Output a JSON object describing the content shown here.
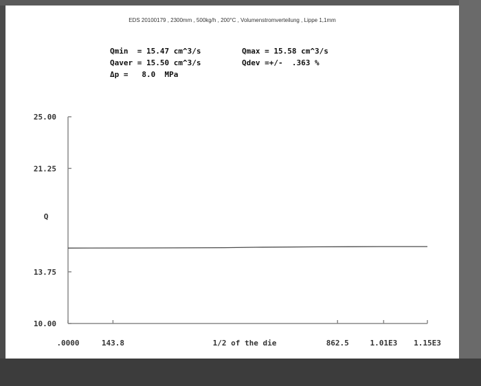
{
  "header": "EDS 20100179 , 2300mm , 500kg/h , 200°C , Volumenstromverteilung , Lippe 1,1mm",
  "stats": {
    "qmin": "Qmin  = 15.47 cm^3/s",
    "qmax": "Qmax = 15.58 cm^3/s",
    "qaver": "Qaver = 15.50 cm^3/s",
    "qdev": "Qdev =+/-  .363 %",
    "dp": "Δp =   8.0  MPa"
  },
  "chart_data": {
    "type": "line",
    "title": "",
    "ylabel": "Q",
    "xlabel": "1/2 of the die",
    "ylim": [
      10.0,
      25.0
    ],
    "xlim": [
      0,
      1150
    ],
    "y_ticks": [
      {
        "value": 10.0,
        "label": "10.00"
      },
      {
        "value": 13.75,
        "label": "13.75"
      },
      {
        "value": 21.25,
        "label": "21.25"
      },
      {
        "value": 25.0,
        "label": "25.00"
      }
    ],
    "x_ticks": [
      {
        "value": 0,
        "label": ".0000"
      },
      {
        "value": 143.8,
        "label": "143.8"
      },
      {
        "value": 862.5,
        "label": "862.5"
      },
      {
        "value": 1010,
        "label": "1.01E3"
      },
      {
        "value": 1150,
        "label": "1.15E3"
      }
    ],
    "series": [
      {
        "color": "#4a4a4a",
        "x": [
          0,
          250,
          500,
          600,
          800,
          1000,
          1150
        ],
        "y": [
          15.47,
          15.48,
          15.5,
          15.53,
          15.56,
          15.58,
          15.58
        ]
      }
    ]
  }
}
